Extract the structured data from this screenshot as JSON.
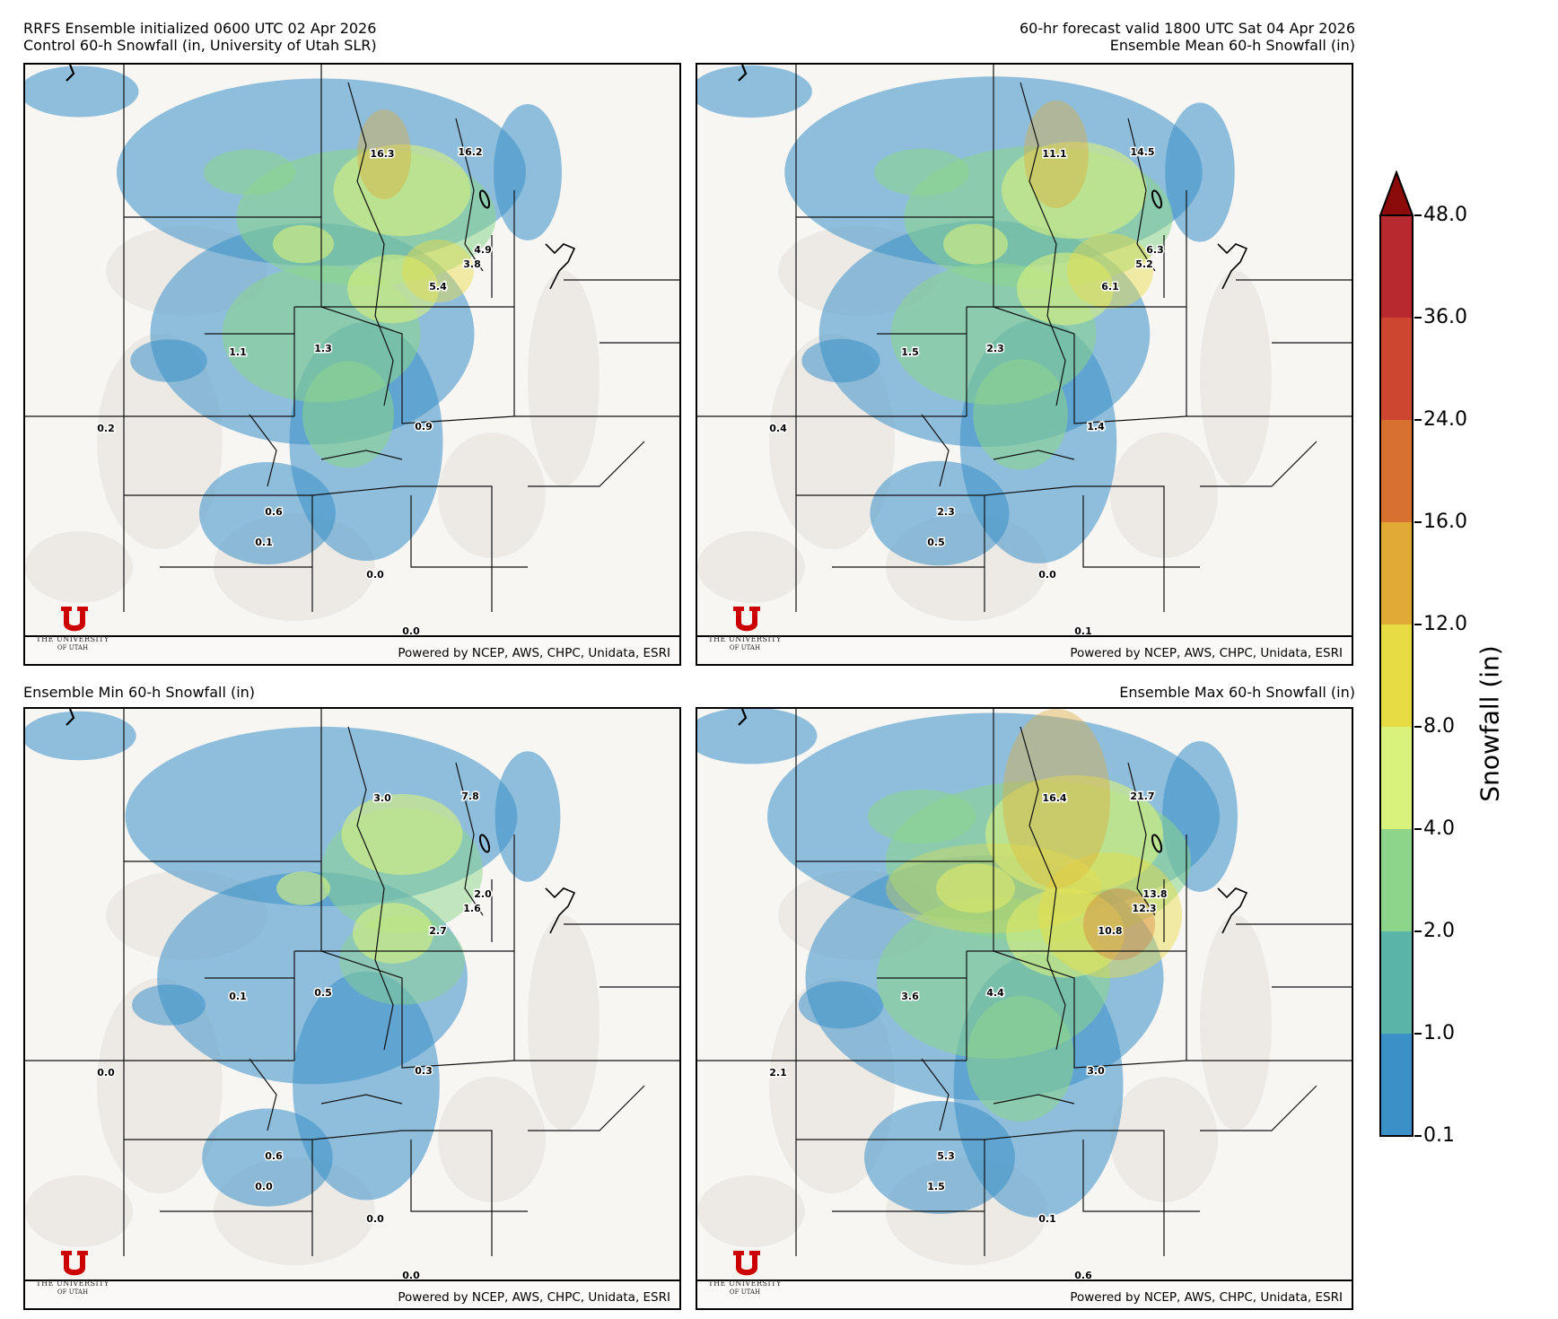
{
  "header": {
    "left_line1": "RRFS Ensemble initialized 0600 UTC 02 Apr 2026",
    "left_line2": "Control 60-h Snowfall (in, University of Utah SLR)",
    "right_line1": "60-hr forecast valid 1800 UTC Sat 04 Apr 2026",
    "right_line2": "Ensemble Mean 60-h Snowfall (in)"
  },
  "panels": [
    {
      "title": "Control 60-h Snowfall (in, University of Utah SLR)",
      "points": [
        {
          "label": "16.3"
        },
        {
          "label": "16.2"
        },
        {
          "label": "4.9"
        },
        {
          "label": "3.8"
        },
        {
          "label": "5.4"
        },
        {
          "label": "1.1"
        },
        {
          "label": "1.3"
        },
        {
          "label": "0.2"
        },
        {
          "label": "0.9"
        },
        {
          "label": "0.6"
        },
        {
          "label": "0.1"
        },
        {
          "label": "0.0"
        },
        {
          "label": "0.0"
        }
      ]
    },
    {
      "title": "Ensemble Mean 60-h Snowfall (in)",
      "points": [
        {
          "label": "11.1"
        },
        {
          "label": "14.5"
        },
        {
          "label": "6.3"
        },
        {
          "label": "5.2"
        },
        {
          "label": "6.1"
        },
        {
          "label": "1.5"
        },
        {
          "label": "2.3"
        },
        {
          "label": "0.4"
        },
        {
          "label": "1.4"
        },
        {
          "label": "2.3"
        },
        {
          "label": "0.5"
        },
        {
          "label": "0.0"
        },
        {
          "label": "0.1"
        }
      ]
    },
    {
      "title": "Ensemble Min 60-h Snowfall (in)",
      "points": [
        {
          "label": "3.0"
        },
        {
          "label": "7.8"
        },
        {
          "label": "2.0"
        },
        {
          "label": "1.6"
        },
        {
          "label": "2.7"
        },
        {
          "label": "0.1"
        },
        {
          "label": "0.5"
        },
        {
          "label": "0.0"
        },
        {
          "label": "0.3"
        },
        {
          "label": "0.6"
        },
        {
          "label": "0.0"
        },
        {
          "label": "0.0"
        },
        {
          "label": "0.0"
        }
      ]
    },
    {
      "title": "Ensemble Max 60-h Snowfall (in)",
      "points": [
        {
          "label": "16.4"
        },
        {
          "label": "21.7"
        },
        {
          "label": "13.8"
        },
        {
          "label": "12.3"
        },
        {
          "label": "10.8"
        },
        {
          "label": "3.6"
        },
        {
          "label": "4.4"
        },
        {
          "label": "2.1"
        },
        {
          "label": "3.0"
        },
        {
          "label": "5.3"
        },
        {
          "label": "1.5"
        },
        {
          "label": "0.1"
        },
        {
          "label": "0.6"
        }
      ]
    }
  ],
  "panel_titles": {
    "min": "Ensemble Min 60-h Snowfall (in)",
    "max": "Ensemble Max 60-h Snowfall (in)"
  },
  "credit": "Powered by NCEP, AWS, CHPC, Unidata, ESRI",
  "logo": {
    "line1": "THE UNIVERSITY",
    "line2": "OF UTAH"
  },
  "colorbar": {
    "label": "Snowfall (in)",
    "ticks": [
      "0.1",
      "1.0",
      "2.0",
      "4.0",
      "8.0",
      "12.0",
      "16.0",
      "24.0",
      "36.0",
      "48.0"
    ],
    "colors": [
      "#3b90c8",
      "#5ab4a8",
      "#8cd58a",
      "#d8f27c",
      "#e8dc45",
      "#e0aa35",
      "#d87030",
      "#cc4630",
      "#b8282f"
    ],
    "extend_color": "#8b0b0b"
  }
}
